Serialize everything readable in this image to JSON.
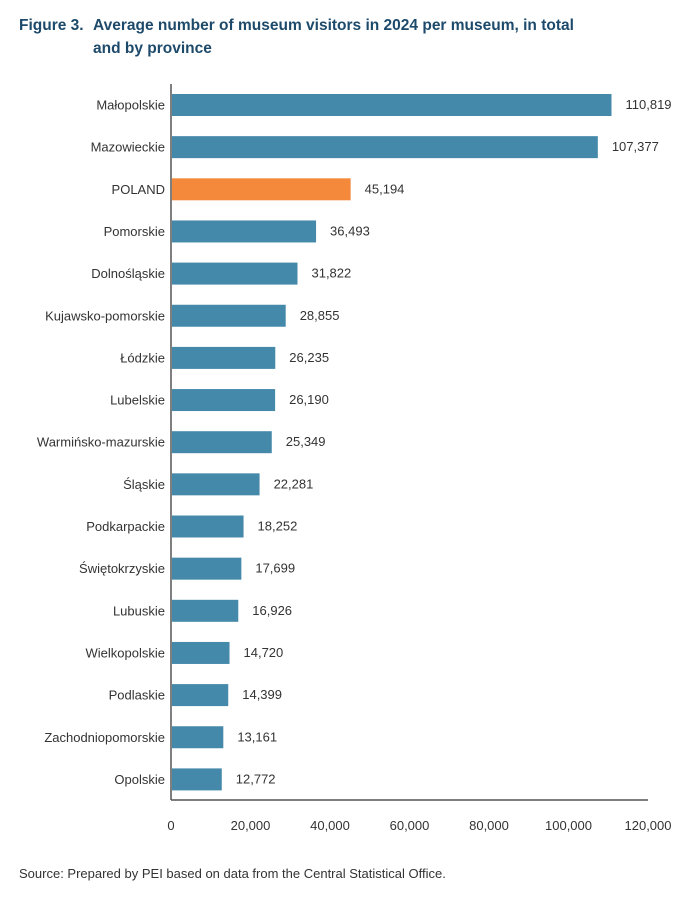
{
  "figure": {
    "number": "Figure 3.",
    "title": "Average number of museum visitors in 2024 per museum, in total and by province"
  },
  "source": "Source: Prepared by PEI based on data from the Central Statistical Office.",
  "colors": {
    "bar": "#4589aa",
    "highlight": "#f5893b",
    "axis": "#555555",
    "title": "#1d4a6b"
  },
  "chart_data": {
    "type": "bar",
    "orientation": "horizontal",
    "title": "Average number of museum visitors in 2024 per museum, in total and by province",
    "xlabel": "",
    "ylabel": "",
    "xlim": [
      0,
      120000
    ],
    "xticks": [
      0,
      20000,
      40000,
      60000,
      80000,
      100000,
      120000
    ],
    "xtick_labels": [
      "0",
      "20,000",
      "40,000",
      "60,000",
      "80,000",
      "100,000",
      "120,000"
    ],
    "grid": false,
    "legend": "none",
    "highlight_category": "POLAND",
    "categories": [
      "Małopolskie",
      "Mazowieckie",
      "POLAND",
      "Pomorskie",
      "Dolnośląskie",
      "Kujawsko-pomorskie",
      "Łódzkie",
      "Lubelskie",
      "Warmińsko-mazurskie",
      "Śląskie",
      "Podkarpackie",
      "Świętokrzyskie",
      "Lubuskie",
      "Wielkopolskie",
      "Podlaskie",
      "Zachodniopomorskie",
      "Opolskie"
    ],
    "values": [
      110819,
      107377,
      45194,
      36493,
      31822,
      28855,
      26235,
      26190,
      25349,
      22281,
      18252,
      17699,
      16926,
      14720,
      14399,
      13161,
      12772
    ],
    "value_labels": [
      "110,819",
      "107,377",
      "45,194",
      "36,493",
      "31,822",
      "28,855",
      "26,235",
      "26,190",
      "25,349",
      "22,281",
      "18,252",
      "17,699",
      "16,926",
      "14,720",
      "14,399",
      "13,161",
      "12,772"
    ]
  }
}
